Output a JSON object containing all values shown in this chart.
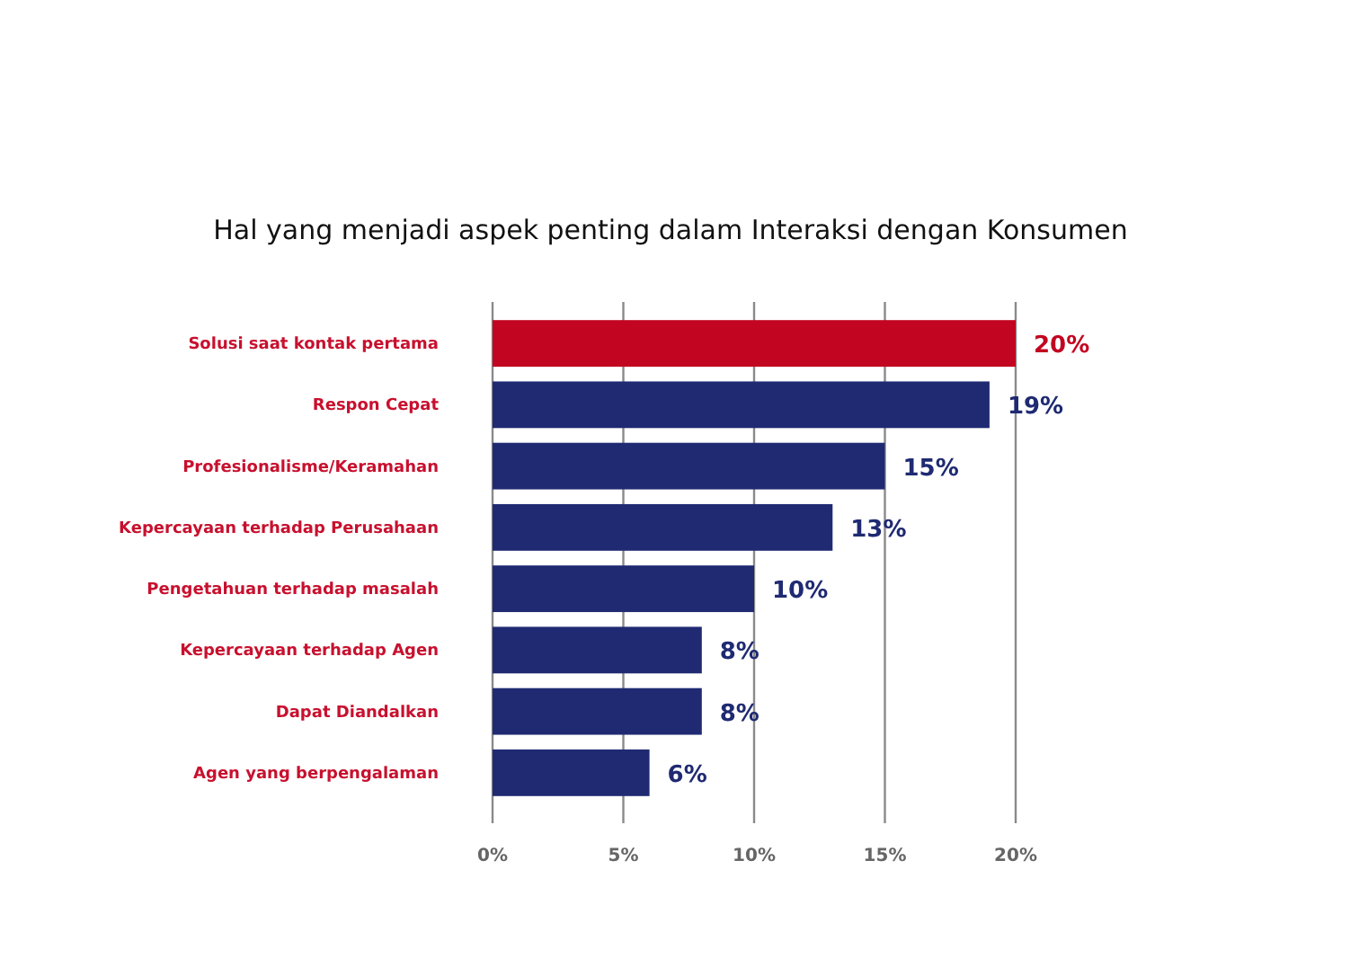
{
  "chart_data": {
    "type": "bar",
    "orientation": "horizontal",
    "title": "Hal yang menjadi aspek penting dalam Interaksi dengan Konsumen",
    "categories": [
      "Solusi saat kontak pertama",
      "Respon Cepat",
      "Profesionalisme/Keramahan",
      "Kepercayaan terhadap Perusahaan",
      "Pengetahuan terhadap masalah",
      "Kepercayaan terhadap Agen",
      "Dapat Diandalkan",
      "Agen yang berpengalaman"
    ],
    "values": [
      20,
      19,
      15,
      13,
      10,
      8,
      8,
      6
    ],
    "colors": [
      "#c20520",
      "#1f2a72",
      "#1f2a72",
      "#1f2a72",
      "#1f2a72",
      "#1f2a72",
      "#1f2a72",
      "#1f2a72"
    ],
    "value_labels": [
      "20%",
      "19%",
      "15%",
      "13%",
      "10%",
      "8%",
      "8%",
      "6%"
    ],
    "xlim": [
      0,
      20
    ],
    "xticks": [
      {
        "value": 0,
        "label": "0%"
      },
      {
        "value": 5,
        "label": "5%"
      },
      {
        "value": 10,
        "label": "10%"
      },
      {
        "value": 15,
        "label": "15%"
      },
      {
        "value": 20,
        "label": "20%"
      }
    ],
    "grid": "x"
  }
}
